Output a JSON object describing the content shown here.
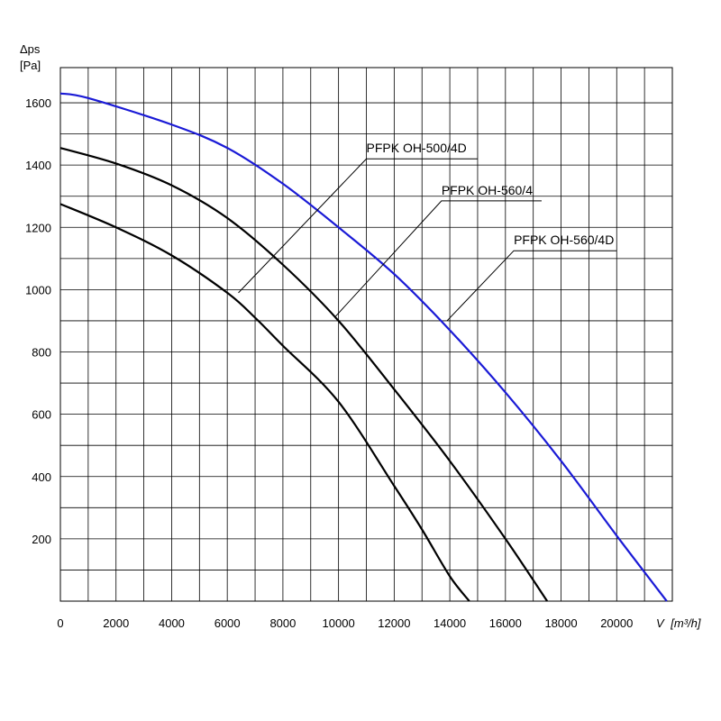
{
  "chart_data": {
    "type": "line",
    "ylabel_symbol": "Δps",
    "ylabel_unit": "[Pa]",
    "xlabel_symbol": "V",
    "xlabel_unit": "[m³/h]",
    "xlim": [
      0,
      22000
    ],
    "ylim": [
      0,
      1650
    ],
    "x_ticks": [
      0,
      2000,
      4000,
      6000,
      8000,
      10000,
      12000,
      14000,
      16000,
      18000,
      20000
    ],
    "y_ticks": [
      200,
      400,
      600,
      800,
      1000,
      1200,
      1400,
      1600
    ],
    "grid": true,
    "series": [
      {
        "name": "PFPK OH-500/4D",
        "color": "#000000",
        "x": [
          0,
          2000,
          4000,
          6000,
          7000,
          8000,
          10000,
          12000,
          13000,
          14000,
          14700
        ],
        "y": [
          1275,
          1200,
          1110,
          990,
          910,
          820,
          640,
          370,
          230,
          80,
          0
        ]
      },
      {
        "name": "PFPK OH-560/4",
        "color": "#000000",
        "x": [
          0,
          2000,
          4000,
          6000,
          8000,
          10000,
          12000,
          14000,
          16000,
          17500
        ],
        "y": [
          1455,
          1405,
          1335,
          1230,
          1080,
          900,
          680,
          450,
          200,
          0
        ]
      },
      {
        "name": "PFPK OH-560/4D",
        "color": "#1a1ad6",
        "x": [
          0,
          1000,
          4000,
          6000,
          8000,
          10000,
          12000,
          14000,
          16000,
          18000,
          20000,
          21800
        ],
        "y": [
          1630,
          1615,
          1530,
          1455,
          1340,
          1200,
          1050,
          870,
          670,
          450,
          210,
          0
        ]
      }
    ],
    "callouts": [
      {
        "series": 0,
        "at": [
          6400,
          990
        ],
        "elbow": [
          11000,
          1420
        ],
        "end": [
          15000,
          1420
        ]
      },
      {
        "series": 1,
        "at": [
          9900,
          915
        ],
        "elbow": [
          13700,
          1285
        ],
        "end": [
          17300,
          1285
        ]
      },
      {
        "series": 2,
        "at": [
          13900,
          900
        ],
        "elbow": [
          16300,
          1125
        ],
        "end": [
          20000,
          1125
        ]
      }
    ]
  }
}
